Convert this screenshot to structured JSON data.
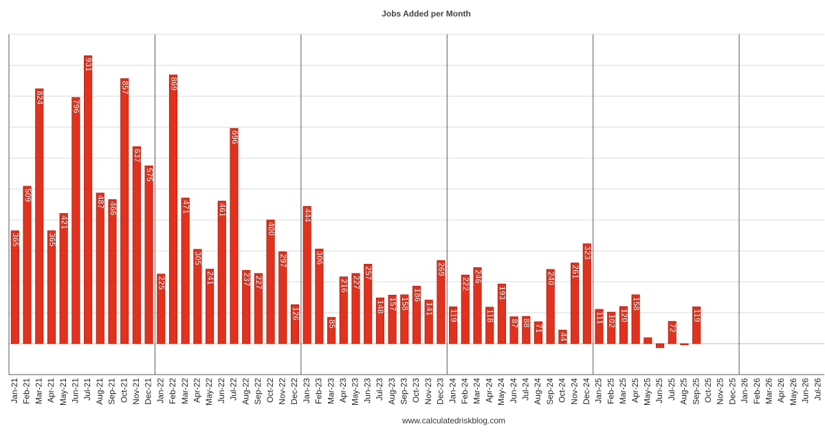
{
  "chart_data": {
    "type": "bar",
    "title": "Jobs Added per Month",
    "source": "www.calculatedriskblog.com",
    "categories": [
      "Jan-21",
      "Feb-21",
      "Mar-21",
      "Apr-21",
      "May-21",
      "Jun-21",
      "Jul-21",
      "Aug-21",
      "Sep-21",
      "Oct-21",
      "Nov-21",
      "Dec-21",
      "Jan-22",
      "Feb-22",
      "Mar-22",
      "Apr-22",
      "May-22",
      "Jun-22",
      "Jul-22",
      "Aug-22",
      "Sep-22",
      "Oct-22",
      "Nov-22",
      "Dec-22",
      "Jan-23",
      "Feb-23",
      "Mar-23",
      "Apr-23",
      "May-23",
      "Jun-23",
      "Jul-23",
      "Aug-23",
      "Sep-23",
      "Oct-23",
      "Nov-23",
      "Dec-23",
      "Jan-24",
      "Feb-24",
      "Mar-24",
      "Apr-24",
      "May-24",
      "Jun-24",
      "Jul-24",
      "Aug-24",
      "Sep-24",
      "Oct-24",
      "Nov-24",
      "Dec-24",
      "Jan-25",
      "Feb-25",
      "Mar-25",
      "Apr-25",
      "May-25",
      "Jun-25",
      "Jul-25",
      "Aug-25",
      "Sep-25",
      "Oct-25",
      "Nov-25",
      "Dec-25",
      "Jan-26",
      "Feb-26",
      "Mar-26",
      "Apr-26",
      "May-26",
      "Jun-26",
      "Jul-26"
    ],
    "values": [
      365,
      509,
      824,
      365,
      421,
      796,
      931,
      487,
      466,
      857,
      637,
      575,
      225,
      869,
      471,
      305,
      241,
      461,
      696,
      237,
      227,
      400,
      297,
      126,
      444,
      306,
      85,
      216,
      227,
      257,
      148,
      157,
      158,
      186,
      141,
      269,
      119,
      222,
      246,
      118,
      193,
      87,
      88,
      71,
      240,
      44,
      261,
      323,
      111,
      102,
      120,
      158,
      19,
      -13,
      72,
      -4,
      119,
      null,
      null,
      null,
      null,
      null,
      null,
      null,
      null,
      null,
      null
    ],
    "labeled": [
      true,
      true,
      true,
      true,
      true,
      true,
      true,
      true,
      true,
      true,
      true,
      true,
      true,
      true,
      true,
      true,
      true,
      true,
      true,
      true,
      true,
      true,
      true,
      true,
      true,
      true,
      true,
      true,
      true,
      true,
      true,
      true,
      true,
      true,
      true,
      true,
      true,
      true,
      true,
      true,
      true,
      true,
      true,
      true,
      true,
      true,
      true,
      true,
      true,
      true,
      true,
      true,
      false,
      false,
      true,
      false,
      true,
      false,
      false,
      false,
      false,
      false,
      false,
      false,
      false,
      false,
      false
    ],
    "color": "#e2311d",
    "ylim": [
      -100,
      1000
    ],
    "yticks": [
      -100,
      0,
      100,
      200,
      300,
      400,
      500,
      600,
      700,
      800,
      900,
      1000
    ],
    "grid": true
  }
}
